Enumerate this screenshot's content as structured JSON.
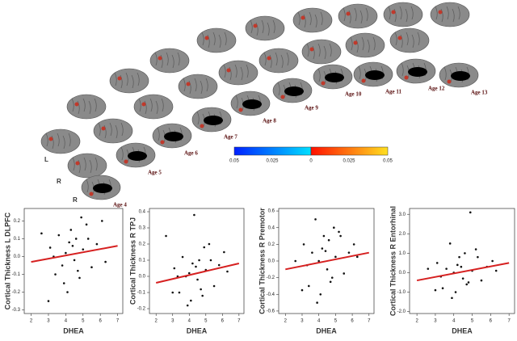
{
  "figure": {
    "ages": [
      "Age 4",
      "Age 5",
      "Age 6",
      "Age 7",
      "Age 8",
      "Age 9",
      "Age 10",
      "Age 11",
      "Age 12",
      "Age 13"
    ],
    "sides": [
      "L",
      "R",
      "R"
    ],
    "colorbar": [
      "0.05",
      "0.025",
      "0",
      "0.025",
      "0.05"
    ]
  },
  "chart_data": [
    {
      "type": "scatter",
      "ylabel": "Cortical Thickness L DLPFC",
      "xlabel": "DHEA",
      "color": "#111111",
      "fit_color": "#d62020",
      "x": [
        3.1,
        3.4,
        3.6,
        3.8,
        4.0,
        4.1,
        4.2,
        4.3,
        4.5,
        4.6,
        4.8,
        5.0,
        5.2,
        5.5,
        5.8,
        6.1,
        2.6,
        3.3,
        3.9,
        4.4,
        4.7,
        5.3,
        6.3,
        3.0,
        4.9
      ],
      "values": [
        0.05,
        -0.1,
        0.12,
        -0.05,
        0.02,
        -0.2,
        0.08,
        0.15,
        -0.02,
        0.1,
        -0.12,
        0.04,
        0.18,
        -0.06,
        0.07,
        0.2,
        0.13,
        0.0,
        -0.15,
        0.06,
        -0.08,
        0.1,
        -0.03,
        -0.25,
        0.22
      ],
      "fit_x": [
        2,
        7
      ],
      "fit_y": [
        -0.03,
        0.06
      ],
      "xlim": [
        1.6,
        7.3
      ],
      "xticks": [
        2,
        3,
        4,
        5,
        6,
        7
      ],
      "ylim": [
        -0.32,
        0.27
      ],
      "yticks": [
        -0.3,
        -0.2,
        -0.1,
        {
          "value": 0,
          "label": "0.0"
        },
        0.1,
        0.2
      ]
    },
    {
      "type": "scatter",
      "ylabel": "Cortical Thickness R TPJ",
      "xlabel": "DHEA",
      "color": "#111111",
      "fit_color": "#d62020",
      "x": [
        3.1,
        3.4,
        3.6,
        3.8,
        4.0,
        4.1,
        4.2,
        4.3,
        4.5,
        4.6,
        4.8,
        5.0,
        5.2,
        5.5,
        5.8,
        6.1,
        2.6,
        3.3,
        3.9,
        4.4,
        4.7,
        5.3,
        6.3,
        3.0,
        4.9
      ],
      "values": [
        0.05,
        -0.1,
        0.12,
        0.0,
        0.02,
        -0.15,
        0.08,
        0.38,
        -0.02,
        0.1,
        -0.12,
        0.04,
        0.2,
        -0.06,
        0.07,
        0.15,
        0.25,
        0.0,
        -0.18,
        0.06,
        -0.08,
        0.1,
        0.03,
        -0.1,
        0.18
      ],
      "fit_x": [
        2,
        7
      ],
      "fit_y": [
        -0.04,
        0.08
      ],
      "xlim": [
        1.6,
        7.3
      ],
      "xticks": [
        2,
        3,
        4,
        5,
        6,
        7
      ],
      "ylim": [
        -0.23,
        0.42
      ],
      "yticks": [
        -0.2,
        -0.1,
        {
          "value": 0,
          "label": "0.0"
        },
        0.1,
        0.2,
        0.3,
        0.4
      ]
    },
    {
      "type": "scatter",
      "ylabel": "Cortical Thickness R Premotor",
      "xlabel": "DHEA",
      "color": "#111111",
      "fit_color": "#d62020",
      "x": [
        3.1,
        3.4,
        3.6,
        3.8,
        4.0,
        4.1,
        4.2,
        4.3,
        4.5,
        4.6,
        4.8,
        5.0,
        5.2,
        5.5,
        5.8,
        6.1,
        2.6,
        3.3,
        3.9,
        4.4,
        4.7,
        5.3,
        6.3,
        3.0,
        4.9
      ],
      "values": [
        0.2,
        -0.3,
        0.1,
        0.5,
        0.0,
        -0.4,
        0.15,
        0.3,
        -0.1,
        0.25,
        -0.2,
        0.05,
        0.35,
        -0.15,
        0.1,
        0.2,
        0.0,
        -0.05,
        -0.5,
        0.12,
        -0.25,
        0.3,
        0.05,
        -0.35,
        0.4
      ],
      "fit_x": [
        2,
        7
      ],
      "fit_y": [
        -0.1,
        0.1
      ],
      "xlim": [
        1.6,
        7.3
      ],
      "xticks": [
        2,
        3,
        4,
        5,
        6,
        7
      ],
      "ylim": [
        -0.63,
        0.63
      ],
      "yticks": [
        -0.6,
        -0.4,
        -0.2,
        {
          "value": 0,
          "label": "0.0"
        },
        0.2,
        0.4,
        0.6
      ]
    },
    {
      "type": "scatter",
      "ylabel": "Cortical Thickness R Entorhinal",
      "xlabel": "DHEA",
      "color": "#111111",
      "fit_color": "#d62020",
      "x": [
        3.1,
        3.4,
        3.6,
        3.8,
        4.0,
        4.1,
        4.2,
        4.3,
        4.5,
        4.6,
        4.8,
        5.0,
        5.2,
        5.5,
        5.8,
        6.1,
        2.6,
        3.3,
        3.9,
        4.4,
        4.7,
        5.3,
        6.3,
        3.0,
        4.9
      ],
      "values": [
        0.5,
        -0.8,
        0.2,
        1.5,
        0.0,
        -1.0,
        0.4,
        0.8,
        -0.3,
        1.0,
        -0.5,
        0.1,
        1.2,
        -0.4,
        0.3,
        0.6,
        0.2,
        -0.2,
        -1.3,
        0.3,
        -0.6,
        0.8,
        0.1,
        -0.9,
        3.1
      ],
      "fit_x": [
        2,
        7
      ],
      "fit_y": [
        -0.4,
        0.5
      ],
      "xlim": [
        1.6,
        7.3
      ],
      "xticks": [
        2,
        3,
        4,
        5,
        6,
        7
      ],
      "ylim": [
        -2.1,
        3.3
      ],
      "yticks": [
        {
          "value": -2,
          "label": "-2.0"
        },
        {
          "value": -1,
          "label": "-1.0"
        },
        {
          "value": 0,
          "label": "0.0"
        },
        {
          "value": 1,
          "label": "1.0"
        },
        {
          "value": 2,
          "label": "2.0"
        },
        {
          "value": 3,
          "label": "3.0"
        }
      ]
    }
  ]
}
